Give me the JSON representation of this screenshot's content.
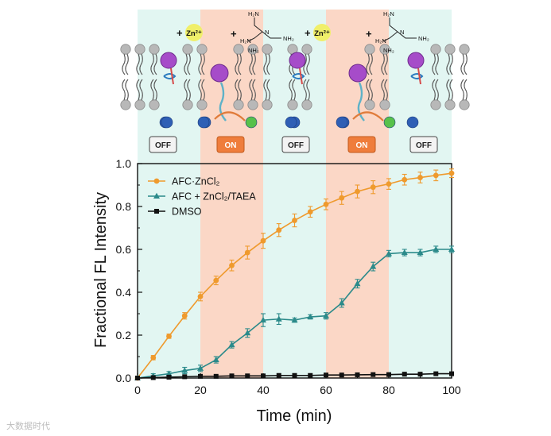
{
  "colors": {
    "off_band": "#e2f6f2",
    "on_band": "#fbd7c6",
    "series_zn": "#ef9a2d",
    "series_taea": "#2b8a8a",
    "series_dmso": "#111111",
    "on_box": "#ef7d3c",
    "lipid_head": "#b8b8b8",
    "probe_ball": "#a64cc9",
    "quencher_blue": "#2f5fb5",
    "released_green": "#57c14b",
    "zn_badge": "#f0ef6a"
  },
  "schematic": {
    "states": [
      "OFF",
      "ON",
      "OFF",
      "ON",
      "OFF"
    ],
    "zn_label_plus": "+",
    "zn_label": "Zn²⁺",
    "taea_plus": "+",
    "taea_groups": [
      "H₂N",
      "N",
      "NH₂",
      "H₂N",
      "NH₂"
    ]
  },
  "watermark": "大数据时代",
  "chart_data": {
    "type": "line",
    "xlabel": "Time (min)",
    "ylabel": "Fractional FL Intensity",
    "xlim": [
      0,
      100
    ],
    "ylim": [
      0,
      1.0
    ],
    "xticks": [
      "0",
      "20",
      "40",
      "60",
      "80",
      "100"
    ],
    "yticks": [
      "0.0",
      "0.2",
      "0.4",
      "0.6",
      "0.8",
      "1.0"
    ],
    "bands": [
      {
        "state": "off",
        "x0": 0,
        "x1": 20
      },
      {
        "state": "on",
        "x0": 20,
        "x1": 40
      },
      {
        "state": "off",
        "x0": 40,
        "x1": 60
      },
      {
        "state": "on",
        "x0": 60,
        "x1": 80
      },
      {
        "state": "off",
        "x0": 80,
        "x1": 100
      }
    ],
    "legend_position": "top-left",
    "series": [
      {
        "name": "AFC·ZnCl₂",
        "marker": "circle",
        "color": "#ef9a2d",
        "x": [
          0,
          5,
          10,
          15,
          20,
          25,
          30,
          35,
          40,
          45,
          50,
          55,
          60,
          65,
          70,
          75,
          80,
          85,
          90,
          95,
          100
        ],
        "y": [
          0.0,
          0.095,
          0.195,
          0.29,
          0.38,
          0.455,
          0.525,
          0.585,
          0.64,
          0.69,
          0.735,
          0.775,
          0.81,
          0.84,
          0.87,
          0.89,
          0.905,
          0.925,
          0.935,
          0.945,
          0.955
        ],
        "err": [
          0,
          0.01,
          0.01,
          0.015,
          0.02,
          0.02,
          0.025,
          0.03,
          0.035,
          0.03,
          0.03,
          0.025,
          0.025,
          0.03,
          0.03,
          0.03,
          0.025,
          0.025,
          0.025,
          0.025,
          0.02
        ]
      },
      {
        "name": "AFC + ZnCl₂/TAEA",
        "marker": "triangle",
        "color": "#2b8a8a",
        "x": [
          0,
          5,
          10,
          15,
          20,
          25,
          30,
          35,
          40,
          45,
          50,
          55,
          60,
          65,
          70,
          75,
          80,
          85,
          90,
          95,
          100
        ],
        "y": [
          0.0,
          0.01,
          0.02,
          0.035,
          0.045,
          0.085,
          0.155,
          0.21,
          0.27,
          0.275,
          0.27,
          0.285,
          0.29,
          0.35,
          0.44,
          0.52,
          0.58,
          0.585,
          0.585,
          0.6,
          0.6
        ],
        "err": [
          0,
          0.01,
          0.01,
          0.015,
          0.015,
          0.015,
          0.015,
          0.02,
          0.03,
          0.025,
          0.01,
          0.01,
          0.015,
          0.02,
          0.02,
          0.02,
          0.015,
          0.015,
          0.015,
          0.015,
          0.015
        ]
      },
      {
        "name": "DMSO",
        "marker": "square",
        "color": "#111111",
        "x": [
          0,
          5,
          10,
          15,
          20,
          25,
          30,
          35,
          40,
          45,
          50,
          55,
          60,
          65,
          70,
          75,
          80,
          85,
          90,
          95,
          100
        ],
        "y": [
          0.0,
          0.002,
          0.004,
          0.006,
          0.008,
          0.008,
          0.01,
          0.01,
          0.01,
          0.012,
          0.012,
          0.012,
          0.014,
          0.014,
          0.015,
          0.016,
          0.016,
          0.018,
          0.018,
          0.02,
          0.02
        ],
        "err": [
          0,
          0,
          0,
          0,
          0,
          0,
          0,
          0,
          0,
          0,
          0,
          0,
          0,
          0,
          0,
          0,
          0,
          0,
          0,
          0,
          0
        ]
      }
    ]
  }
}
